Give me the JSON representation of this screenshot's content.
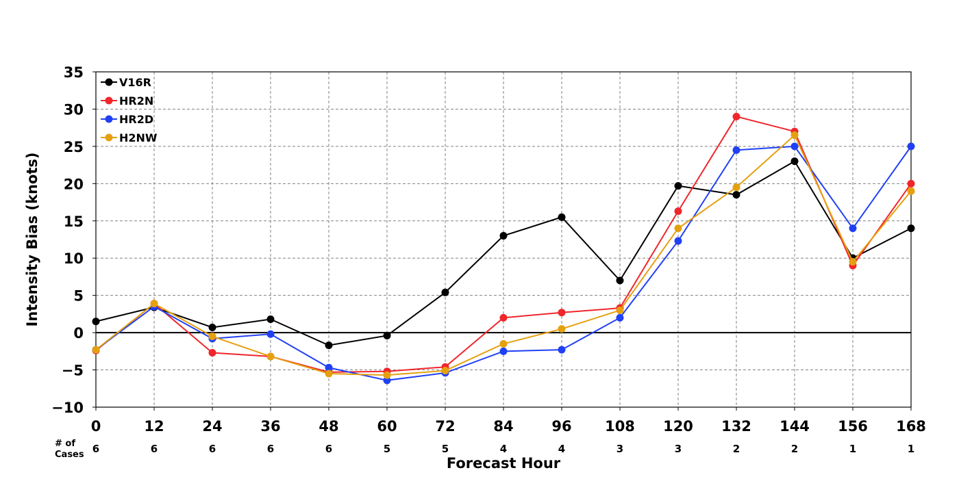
{
  "chart_data": {
    "type": "line",
    "title": "",
    "xlabel": "Forecast Hour",
    "ylabel": "Intensity Bias (knots)",
    "x": [
      0,
      12,
      24,
      36,
      48,
      60,
      72,
      84,
      96,
      108,
      120,
      132,
      144,
      156,
      168
    ],
    "xlim": [
      0,
      168
    ],
    "ylim": [
      -10,
      35
    ],
    "y_ticks": [
      -10,
      -5,
      0,
      5,
      10,
      15,
      20,
      25,
      30,
      35
    ],
    "y_tick_labels": [
      "−10",
      "−5",
      "0",
      "5",
      "10",
      "15",
      "20",
      "25",
      "30",
      "35"
    ],
    "grid": true,
    "legend_position": "top-left",
    "cases_label_line1": "# of",
    "cases_label_line2": "Cases",
    "cases": [
      6,
      6,
      6,
      6,
      6,
      5,
      5,
      4,
      4,
      3,
      3,
      2,
      2,
      1,
      1
    ],
    "series": [
      {
        "name": "V16R",
        "color": "#000000",
        "values": [
          1.5,
          3.4,
          0.7,
          1.8,
          -1.7,
          -0.4,
          5.4,
          13.0,
          15.5,
          7.0,
          19.7,
          18.5,
          23.0,
          10.0,
          14.0
        ]
      },
      {
        "name": "HR2N",
        "color": "#f0262b",
        "values": [
          -2.4,
          3.9,
          -2.7,
          -3.2,
          -5.3,
          -5.2,
          -4.6,
          2.0,
          2.7,
          3.3,
          16.3,
          29.0,
          27.0,
          9.0,
          20.0
        ]
      },
      {
        "name": "HR2D",
        "color": "#2040f5",
        "values": [
          -2.3,
          3.5,
          -0.8,
          -0.2,
          -4.7,
          -6.4,
          -5.4,
          -2.5,
          -2.3,
          2.0,
          12.3,
          24.5,
          25.0,
          14.0,
          25.0
        ]
      },
      {
        "name": "H2NW",
        "color": "#e5a010",
        "values": [
          -2.3,
          3.9,
          -0.5,
          -3.2,
          -5.5,
          -5.7,
          -5.1,
          -1.5,
          0.5,
          3.0,
          14.0,
          19.5,
          26.5,
          9.5,
          19.0
        ]
      }
    ]
  }
}
